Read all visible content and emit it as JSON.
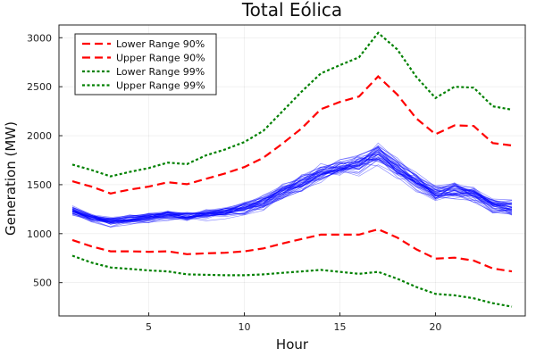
{
  "chart_data": {
    "type": "line",
    "title": "Total Eólica",
    "xlabel": "Hour",
    "ylabel": "Generation (MW)",
    "xlim": [
      0.3,
      24.7
    ],
    "ylim": [
      160,
      3130
    ],
    "xticks": [
      5,
      10,
      15,
      20
    ],
    "yticks": [
      500,
      1000,
      1500,
      2000,
      2500,
      3000
    ],
    "grid": true,
    "legend_position": "top-left",
    "x": [
      1,
      2,
      3,
      4,
      5,
      6,
      7,
      8,
      9,
      10,
      11,
      12,
      13,
      14,
      15,
      16,
      17,
      18,
      19,
      20,
      21,
      22,
      23,
      24
    ],
    "series": [
      {
        "name": "Lower Range 90%",
        "color": "#ff0000",
        "style": "dashed",
        "values": [
          935,
          870,
          820,
          820,
          815,
          820,
          790,
          800,
          805,
          820,
          850,
          900,
          945,
          990,
          990,
          990,
          1045,
          960,
          840,
          745,
          755,
          725,
          645,
          615
        ]
      },
      {
        "name": "Upper Range 90%",
        "color": "#ff0000",
        "style": "dashed",
        "values": [
          1535,
          1480,
          1410,
          1450,
          1480,
          1525,
          1505,
          1560,
          1615,
          1680,
          1775,
          1920,
          2075,
          2270,
          2345,
          2400,
          2605,
          2420,
          2175,
          2015,
          2105,
          2100,
          1925,
          1900
        ]
      },
      {
        "name": "Lower Range 99%",
        "color": "#008000",
        "style": "dotted",
        "values": [
          775,
          705,
          655,
          640,
          625,
          615,
          585,
          580,
          575,
          575,
          585,
          600,
          615,
          630,
          610,
          590,
          610,
          540,
          455,
          385,
          370,
          340,
          290,
          255
        ]
      },
      {
        "name": "Upper Range 99%",
        "color": "#008000",
        "style": "dotted",
        "values": [
          1705,
          1650,
          1585,
          1630,
          1670,
          1725,
          1710,
          1800,
          1860,
          1935,
          2050,
          2250,
          2450,
          2635,
          2720,
          2800,
          3050,
          2880,
          2600,
          2385,
          2500,
          2490,
          2300,
          2265
        ]
      }
    ],
    "sample_band": {
      "color": "#0000ff",
      "count": 40,
      "center": [
        1230,
        1165,
        1120,
        1140,
        1160,
        1185,
        1170,
        1195,
        1220,
        1260,
        1315,
        1420,
        1525,
        1610,
        1665,
        1705,
        1800,
        1660,
        1525,
        1395,
        1435,
        1400,
        1285,
        1260
      ],
      "spread": [
        55,
        50,
        50,
        50,
        55,
        55,
        55,
        60,
        65,
        70,
        80,
        90,
        100,
        105,
        105,
        110,
        120,
        110,
        100,
        90,
        95,
        90,
        80,
        80
      ]
    }
  }
}
